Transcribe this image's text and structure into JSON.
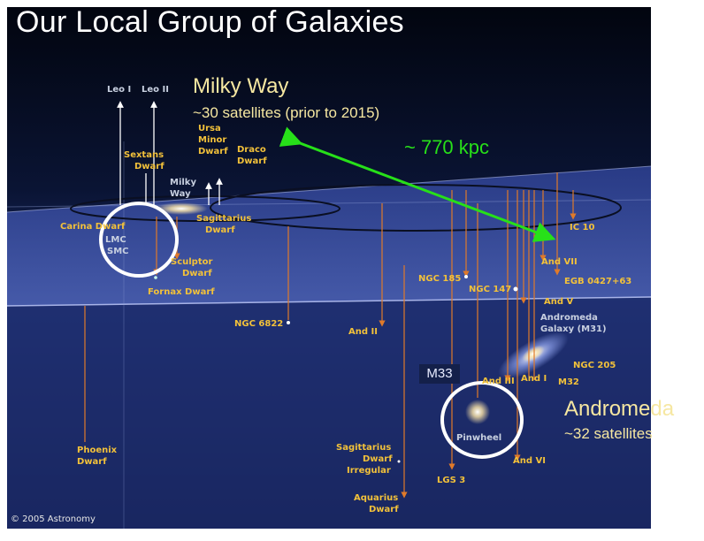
{
  "slide": {
    "title": "Our Local Group of Galaxies",
    "milky_way_name": "Milky Way",
    "milky_way_note": "~30 satellites (prior to 2015)",
    "distance": "~ 770 kpc",
    "andromeda_name": "Andromeda",
    "andromeda_note": "~32 satellites",
    "m33_tag": "M33",
    "credit": "© 2005 Astronomy"
  },
  "galaxy_labels": {
    "leo_i": "Leo I",
    "leo_ii": "Leo II",
    "ursa_minor": [
      "Ursa",
      "Minor",
      "Dwarf"
    ],
    "draco": [
      "Draco",
      "Dwarf"
    ],
    "sextans": [
      "Sextans",
      "Dwarf"
    ],
    "milky_way_small": [
      "Milky",
      "Way"
    ],
    "carina": "Carina Dwarf",
    "sagittarius": [
      "Sagittarius",
      "Dwarf"
    ],
    "lmc": "LMC",
    "smc": "SMC",
    "sculptor": [
      "Sculptor",
      "Dwarf"
    ],
    "fornax": "Fornax Dwarf",
    "ngc_6822": "NGC 6822",
    "and_ii": "And II",
    "ngc_185": "NGC 185",
    "ngc_147": "NGC 147",
    "ic_10": "IC 10",
    "and_vii": "And VII",
    "egb": "EGB 0427+63",
    "and_v": "And V",
    "andromeda_galaxy": [
      "Andromeda",
      "Galaxy (M31)"
    ],
    "ngc_205": "NGC 205",
    "and_iii": "And III",
    "and_i": "And I",
    "m32": "M32",
    "pinwheel": "Pinwheel",
    "and_vi": "And VI",
    "phoenix": [
      "Phoenix",
      "Dwarf"
    ],
    "sag_irregular": [
      "Sagittarius",
      "Dwarf",
      "Irregular"
    ],
    "lgs3": "LGS 3",
    "aquarius": [
      "Aquarius",
      "Dwarf"
    ]
  },
  "colors": {
    "space": "#050a1e",
    "plane": "#1d2d6a",
    "label": "#f2c13a",
    "arrow_green": "#27e019",
    "drop_line": "#e07a2a"
  }
}
